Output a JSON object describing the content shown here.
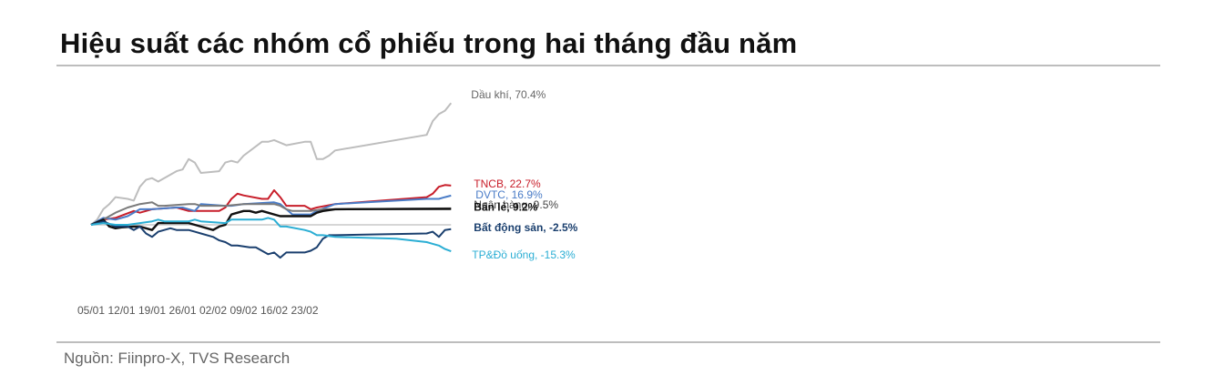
{
  "title": "Hiệu suất các nhóm cổ phiếu trong hai tháng đầu năm",
  "source": "Nguồn: Fiinpro-X, TVS Research",
  "chart_data": {
    "type": "line",
    "xlabel": "",
    "ylabel": "",
    "x_tick_labels": [
      "05/01",
      "12/01",
      "19/01",
      "26/01",
      "02/02",
      "09/02",
      "16/02",
      "23/02"
    ],
    "ylim": [
      -30,
      85
    ],
    "grid": false,
    "legend": "right, inline end labels",
    "series": [
      {
        "name": "Dầu khí",
        "end_label": "Dầu khí, 70.4%",
        "color": "#bdbdbd",
        "label_color": "#666666",
        "label_bold": false,
        "values": [
          [
            0,
            0
          ],
          [
            1,
            3
          ],
          [
            2,
            9
          ],
          [
            3,
            12
          ],
          [
            4,
            16
          ],
          [
            6,
            15
          ],
          [
            7,
            14
          ],
          [
            8,
            22
          ],
          [
            9,
            26
          ],
          [
            10,
            27
          ],
          [
            11,
            25
          ],
          [
            14,
            31
          ],
          [
            15,
            32
          ],
          [
            16,
            38
          ],
          [
            17,
            36
          ],
          [
            18,
            30
          ],
          [
            21,
            31
          ],
          [
            22,
            36
          ],
          [
            23,
            37
          ],
          [
            24,
            36
          ],
          [
            25,
            40
          ],
          [
            28,
            48
          ],
          [
            29,
            48
          ],
          [
            30,
            49
          ],
          [
            32,
            46
          ],
          [
            35,
            48
          ],
          [
            36,
            48
          ],
          [
            37,
            38
          ],
          [
            38,
            38
          ],
          [
            39,
            40
          ],
          [
            40,
            43
          ],
          [
            55,
            52
          ],
          [
            56,
            60
          ],
          [
            57,
            64
          ],
          [
            58,
            66
          ],
          [
            59,
            70.4
          ]
        ]
      },
      {
        "name": "TNCB",
        "end_label": "TNCB, 22.7%",
        "color": "#c81e2a",
        "label_color": "#c81e2a",
        "label_bold": false,
        "values": [
          [
            0,
            0
          ],
          [
            2,
            3
          ],
          [
            4,
            4
          ],
          [
            7,
            8
          ],
          [
            8,
            7
          ],
          [
            10,
            9
          ],
          [
            14,
            10
          ],
          [
            15,
            9
          ],
          [
            16,
            8
          ],
          [
            21,
            8
          ],
          [
            22,
            10
          ],
          [
            23,
            15
          ],
          [
            24,
            18
          ],
          [
            25,
            17
          ],
          [
            28,
            15
          ],
          [
            29,
            15
          ],
          [
            30,
            20
          ],
          [
            31,
            16
          ],
          [
            32,
            11
          ],
          [
            33,
            11
          ],
          [
            35,
            11
          ],
          [
            36,
            9
          ],
          [
            37,
            10
          ],
          [
            40,
            12
          ],
          [
            55,
            16
          ],
          [
            56,
            18
          ],
          [
            57,
            22
          ],
          [
            58,
            23
          ],
          [
            59,
            22.7
          ]
        ]
      },
      {
        "name": "DVTC",
        "end_label": "DVTC, 16.9%",
        "color": "#4a7cc7",
        "label_color": "#4a7cc7",
        "label_bold": false,
        "values": [
          [
            0,
            0
          ],
          [
            2,
            4
          ],
          [
            4,
            3
          ],
          [
            6,
            5
          ],
          [
            8,
            9
          ],
          [
            10,
            9
          ],
          [
            14,
            10
          ],
          [
            15,
            10
          ],
          [
            16,
            9
          ],
          [
            17,
            8
          ],
          [
            18,
            12
          ],
          [
            22,
            11
          ],
          [
            23,
            11
          ],
          [
            25,
            12
          ],
          [
            30,
            13
          ],
          [
            31,
            12
          ],
          [
            32,
            9
          ],
          [
            33,
            6
          ],
          [
            35,
            6
          ],
          [
            36,
            6
          ],
          [
            37,
            8
          ],
          [
            40,
            12
          ],
          [
            55,
            15
          ],
          [
            56,
            15
          ],
          [
            57,
            15
          ],
          [
            58,
            16
          ],
          [
            59,
            16.9
          ]
        ]
      },
      {
        "name": "Ngân hàng",
        "end_label": "Ngân hàng, 9.5%",
        "color": "#7a7a7a",
        "label_color": "#444444",
        "label_bold": false,
        "values": [
          [
            0,
            0
          ],
          [
            2,
            3
          ],
          [
            4,
            7
          ],
          [
            6,
            10
          ],
          [
            8,
            12
          ],
          [
            10,
            13
          ],
          [
            11,
            11
          ],
          [
            12,
            11
          ],
          [
            16,
            12
          ],
          [
            17,
            12
          ],
          [
            18,
            11
          ],
          [
            22,
            11
          ],
          [
            25,
            12
          ],
          [
            30,
            12
          ],
          [
            31,
            11
          ],
          [
            32,
            9
          ],
          [
            33,
            8
          ],
          [
            36,
            8
          ],
          [
            38,
            9
          ],
          [
            40,
            9
          ],
          [
            59,
            9.5
          ]
        ]
      },
      {
        "name": "Bán lẻ",
        "end_label": "Bán lẻ, 9.2%",
        "color": "#111111",
        "label_color": "#111111",
        "label_bold": true,
        "values": [
          [
            0,
            0
          ],
          [
            2,
            3
          ],
          [
            3,
            -1
          ],
          [
            4,
            -2
          ],
          [
            5,
            -1.5
          ],
          [
            7,
            -1
          ],
          [
            8,
            -1
          ],
          [
            9,
            -2
          ],
          [
            10,
            -3
          ],
          [
            11,
            1
          ],
          [
            12,
            1
          ],
          [
            15,
            1
          ],
          [
            16,
            1
          ],
          [
            18,
            -1
          ],
          [
            19,
            -2
          ],
          [
            20,
            -3
          ],
          [
            21,
            -1
          ],
          [
            22,
            0
          ],
          [
            23,
            6
          ],
          [
            24,
            7
          ],
          [
            25,
            8
          ],
          [
            26,
            8
          ],
          [
            27,
            7
          ],
          [
            28,
            8
          ],
          [
            29,
            7
          ],
          [
            30,
            6
          ],
          [
            31,
            5
          ],
          [
            32,
            5
          ],
          [
            35,
            5
          ],
          [
            36,
            5
          ],
          [
            37,
            7
          ],
          [
            38,
            8
          ],
          [
            40,
            9
          ],
          [
            59,
            9.2
          ]
        ]
      },
      {
        "name": "Bất động sản",
        "end_label": "Bất động sản, -2.5%",
        "color": "#1a3f6e",
        "label_color": "#1a3f6e",
        "label_bold": true,
        "values": [
          [
            0,
            0
          ],
          [
            2,
            2
          ],
          [
            4,
            -1
          ],
          [
            6,
            -1
          ],
          [
            7,
            -3
          ],
          [
            8,
            -1
          ],
          [
            9,
            -5
          ],
          [
            10,
            -7
          ],
          [
            11,
            -4
          ],
          [
            12,
            -3
          ],
          [
            13,
            -2
          ],
          [
            14,
            -3
          ],
          [
            16,
            -3
          ],
          [
            17,
            -4
          ],
          [
            18,
            -5
          ],
          [
            20,
            -7
          ],
          [
            21,
            -9
          ],
          [
            22,
            -10
          ],
          [
            23,
            -12
          ],
          [
            24,
            -12
          ],
          [
            26,
            -13
          ],
          [
            27,
            -13
          ],
          [
            28,
            -15
          ],
          [
            29,
            -17
          ],
          [
            30,
            -16
          ],
          [
            31,
            -19
          ],
          [
            32,
            -16
          ],
          [
            33,
            -16
          ],
          [
            34,
            -16
          ],
          [
            35,
            -16
          ],
          [
            36,
            -15
          ],
          [
            37,
            -13
          ],
          [
            38,
            -8
          ],
          [
            39,
            -6
          ],
          [
            40,
            -6
          ],
          [
            55,
            -5
          ],
          [
            56,
            -4
          ],
          [
            57,
            -7
          ],
          [
            58,
            -3
          ],
          [
            59,
            -2.5
          ]
        ]
      },
      {
        "name": "TP&Đồ uống",
        "end_label": "TP&Đồ uống, -15.3%",
        "color": "#2baed4",
        "label_color": "#2baed4",
        "label_bold": false,
        "values": [
          [
            0,
            0
          ],
          [
            2,
            1
          ],
          [
            4,
            0
          ],
          [
            6,
            0
          ],
          [
            8,
            1
          ],
          [
            10,
            2
          ],
          [
            11,
            3
          ],
          [
            12,
            2
          ],
          [
            16,
            2
          ],
          [
            17,
            3
          ],
          [
            18,
            2
          ],
          [
            22,
            1
          ],
          [
            23,
            3
          ],
          [
            25,
            3
          ],
          [
            28,
            3
          ],
          [
            29,
            4
          ],
          [
            30,
            3
          ],
          [
            31,
            -1
          ],
          [
            32,
            -1
          ],
          [
            35,
            -3
          ],
          [
            36,
            -4
          ],
          [
            37,
            -6
          ],
          [
            38,
            -6
          ],
          [
            40,
            -7
          ],
          [
            50,
            -8
          ],
          [
            55,
            -10
          ],
          [
            56,
            -11
          ],
          [
            57,
            -12
          ],
          [
            58,
            -14
          ],
          [
            59,
            -15.3
          ]
        ]
      }
    ]
  }
}
